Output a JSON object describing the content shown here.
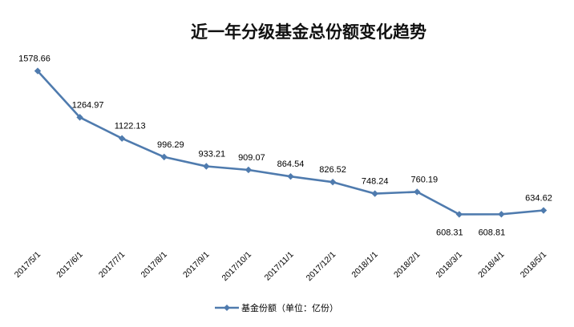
{
  "chart_data": {
    "type": "line",
    "title": "近一年分级基金总份额变化趋势",
    "categories": [
      "2017/5/1",
      "2017/6/1",
      "2017/7/1",
      "2017/8/1",
      "2017/9/1",
      "2017/10/1",
      "2017/11/1",
      "2017/12/1",
      "2018/1/1",
      "2018/2/1",
      "2018/3/1",
      "2018/4/1",
      "2018/5/1"
    ],
    "series": [
      {
        "name": "基金份额（单位：亿份）",
        "values": [
          1578.66,
          1264.97,
          1122.13,
          996.29,
          933.21,
          909.07,
          864.54,
          826.52,
          748.24,
          760.19,
          608.31,
          608.81,
          634.62
        ],
        "color": "#4F7BAE"
      }
    ],
    "data_labels": [
      "1578.66",
      "1264.97",
      "1122.13",
      "996.29",
      "933.21",
      "909.07",
      "864.54",
      "826.52",
      "748.24",
      "760.19",
      "608.31",
      "608.81",
      "634.62"
    ],
    "xlabel": "",
    "ylabel": "",
    "ylim": [
      0,
      1800
    ],
    "grid": false,
    "legend": "bottom",
    "marker": "diamond"
  }
}
